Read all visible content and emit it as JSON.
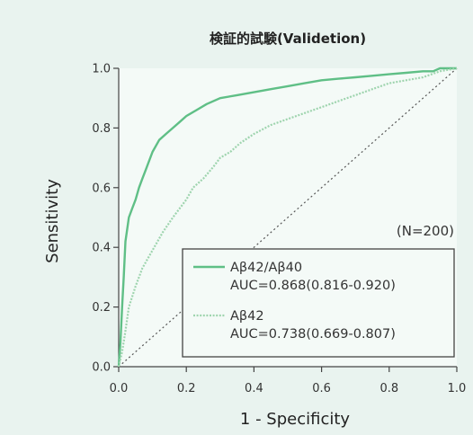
{
  "chart_data": {
    "type": "line",
    "title": "検証的試験(Validetion)",
    "xlabel": "1 - Specificity",
    "ylabel": "Sensitivity",
    "xlim": [
      0.0,
      1.0
    ],
    "ylim": [
      0.0,
      1.0
    ],
    "xticks": [
      "0.0",
      "0.2",
      "0.4",
      "0.6",
      "0.8",
      "1.0"
    ],
    "yticks": [
      "0.0",
      "0.2",
      "0.4",
      "0.6",
      "0.8",
      "1.0"
    ],
    "annotation": "(N=200)",
    "grid": false,
    "legend_position": "bottom-right",
    "series": [
      {
        "name": "Aβ42/Aβ40",
        "auc_label": "AUC=0.868(0.816-0.920)",
        "color": "#5fbf86",
        "style": "solid",
        "x": [
          0.0,
          0.005,
          0.01,
          0.015,
          0.02,
          0.03,
          0.04,
          0.05,
          0.06,
          0.07,
          0.08,
          0.1,
          0.12,
          0.14,
          0.16,
          0.18,
          0.2,
          0.23,
          0.26,
          0.3,
          0.35,
          0.4,
          0.45,
          0.5,
          0.55,
          0.6,
          0.65,
          0.7,
          0.75,
          0.8,
          0.85,
          0.9,
          0.93,
          0.95,
          0.97,
          1.0
        ],
        "y": [
          0.0,
          0.08,
          0.2,
          0.3,
          0.42,
          0.5,
          0.53,
          0.56,
          0.6,
          0.63,
          0.66,
          0.72,
          0.76,
          0.78,
          0.8,
          0.82,
          0.84,
          0.86,
          0.88,
          0.9,
          0.91,
          0.92,
          0.93,
          0.94,
          0.95,
          0.96,
          0.965,
          0.97,
          0.975,
          0.98,
          0.985,
          0.99,
          0.99,
          1.0,
          1.0,
          1.0
        ]
      },
      {
        "name": "Aβ42",
        "auc_label": "AUC=0.738(0.669-0.807)",
        "color": "#9ed4ae",
        "style": "dotted",
        "x": [
          0.0,
          0.01,
          0.02,
          0.03,
          0.05,
          0.07,
          0.1,
          0.13,
          0.16,
          0.2,
          0.22,
          0.25,
          0.28,
          0.3,
          0.33,
          0.36,
          0.4,
          0.45,
          0.5,
          0.55,
          0.6,
          0.65,
          0.7,
          0.75,
          0.8,
          0.85,
          0.9,
          0.95,
          1.0
        ],
        "y": [
          0.0,
          0.05,
          0.12,
          0.2,
          0.27,
          0.33,
          0.39,
          0.45,
          0.5,
          0.56,
          0.6,
          0.63,
          0.67,
          0.7,
          0.72,
          0.75,
          0.78,
          0.81,
          0.83,
          0.85,
          0.87,
          0.89,
          0.91,
          0.93,
          0.95,
          0.96,
          0.97,
          0.99,
          1.0
        ]
      }
    ],
    "reference_line": {
      "x": [
        0.0,
        1.0
      ],
      "y": [
        0.0,
        1.0
      ],
      "style": "dotted",
      "color": "#555555"
    }
  }
}
